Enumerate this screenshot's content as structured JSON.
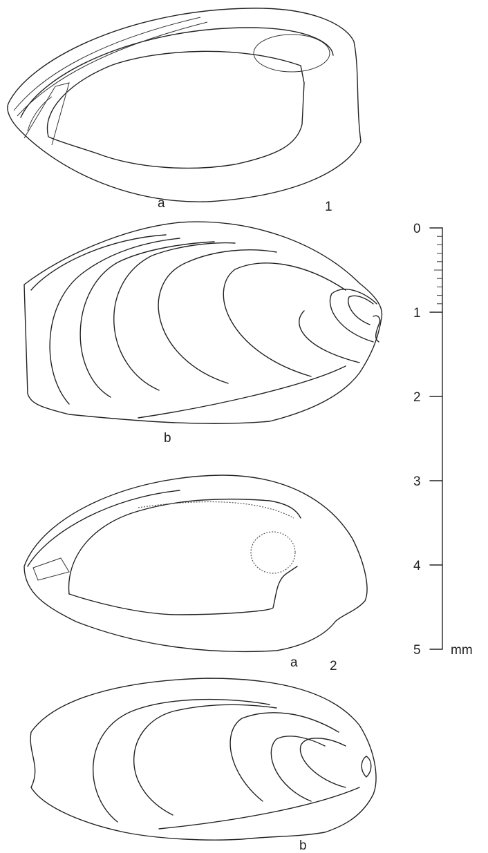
{
  "figures": [
    {
      "number": "1",
      "views": [
        "a",
        "b"
      ]
    },
    {
      "number": "2",
      "views": [
        "a",
        "b"
      ]
    }
  ],
  "scale": {
    "ticks": [
      "0",
      "1",
      "2",
      "3",
      "4",
      "5"
    ],
    "unit": "mm"
  }
}
